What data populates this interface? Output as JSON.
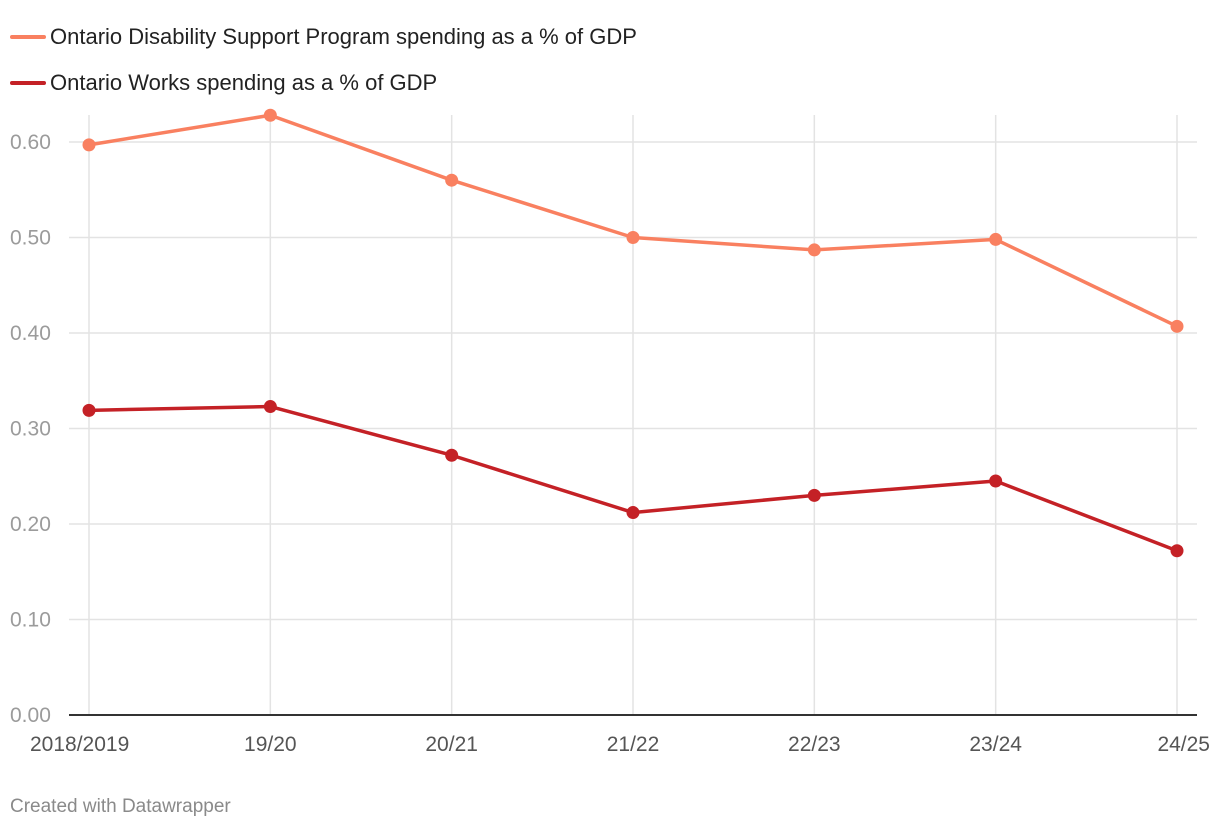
{
  "chart_data": {
    "type": "line",
    "categories": [
      "2018/2019",
      "19/20",
      "20/21",
      "21/22",
      "22/23",
      "23/24",
      "24/25"
    ],
    "series": [
      {
        "name": "Ontario Disability Support Program spending as a % of GDP",
        "color": "#f98060",
        "values": [
          0.597,
          0.628,
          0.56,
          0.5,
          0.487,
          0.498,
          0.407
        ]
      },
      {
        "name": "Ontario Works spending as a % of GDP",
        "color": "#c42126",
        "values": [
          0.319,
          0.323,
          0.272,
          0.212,
          0.23,
          0.245,
          0.172
        ]
      }
    ],
    "yticks": [
      "0.00",
      "0.10",
      "0.20",
      "0.30",
      "0.40",
      "0.50",
      "0.60"
    ],
    "ylim": [
      0,
      0.6
    ],
    "grid": true,
    "legend": "top-left"
  },
  "footer": "Created with Datawrapper"
}
